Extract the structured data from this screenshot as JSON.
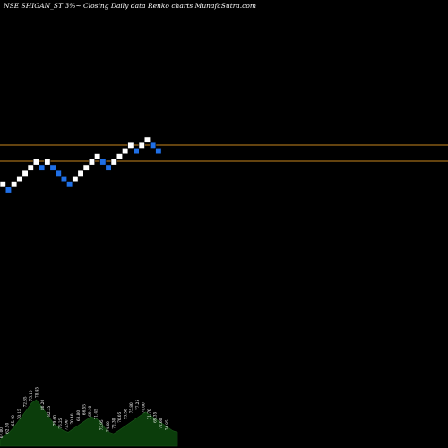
{
  "chart_data": {
    "type": "renko",
    "title": "NSE SHIGAN_ST 3%~ Closing Daily data Renko charts MunafaSutra.com",
    "colors": {
      "background": "#000000",
      "up_brick": "#ffffff",
      "down_brick": "#1f6fe6",
      "level_line": "#c8861e",
      "volume": "#0b3d0b"
    },
    "bricks": [
      {
        "dir": "up"
      },
      {
        "dir": "down"
      },
      {
        "dir": "up"
      },
      {
        "dir": "up"
      },
      {
        "dir": "up"
      },
      {
        "dir": "up"
      },
      {
        "dir": "up"
      },
      {
        "dir": "down"
      },
      {
        "dir": "up"
      },
      {
        "dir": "down"
      },
      {
        "dir": "down"
      },
      {
        "dir": "down"
      },
      {
        "dir": "down"
      },
      {
        "dir": "up"
      },
      {
        "dir": "up"
      },
      {
        "dir": "up"
      },
      {
        "dir": "up"
      },
      {
        "dir": "up"
      },
      {
        "dir": "down"
      },
      {
        "dir": "down"
      },
      {
        "dir": "up"
      },
      {
        "dir": "up"
      },
      {
        "dir": "up"
      },
      {
        "dir": "up"
      },
      {
        "dir": "down"
      },
      {
        "dir": "up"
      },
      {
        "dir": "up"
      },
      {
        "dir": "down"
      },
      {
        "dir": "down"
      }
    ],
    "level_lines": [
      "upper",
      "lower"
    ],
    "volume": [
      4,
      7,
      9,
      12,
      16,
      20,
      24,
      28,
      30,
      26,
      22,
      18,
      14,
      12,
      10,
      9,
      11,
      13,
      15,
      17,
      19,
      18,
      16,
      12,
      9,
      8,
      10,
      12,
      14,
      16,
      18,
      20,
      22,
      20,
      18,
      16,
      14,
      12,
      10,
      9
    ],
    "volume_labels": [
      "67.00",
      "62.50",
      "65.40",
      "70.15",
      "72.85",
      "75.10",
      "78.45",
      "80.20",
      "82.35",
      "79.60",
      "76.25",
      "72.90",
      "70.40",
      "68.80",
      "66.55",
      "69.10",
      "71.45",
      "73.95",
      "74.60",
      "72.30",
      "70.05",
      "73.50",
      "75.80",
      "77.25",
      "74.00",
      "71.70",
      "69.35",
      "72.60",
      "74.85"
    ]
  }
}
